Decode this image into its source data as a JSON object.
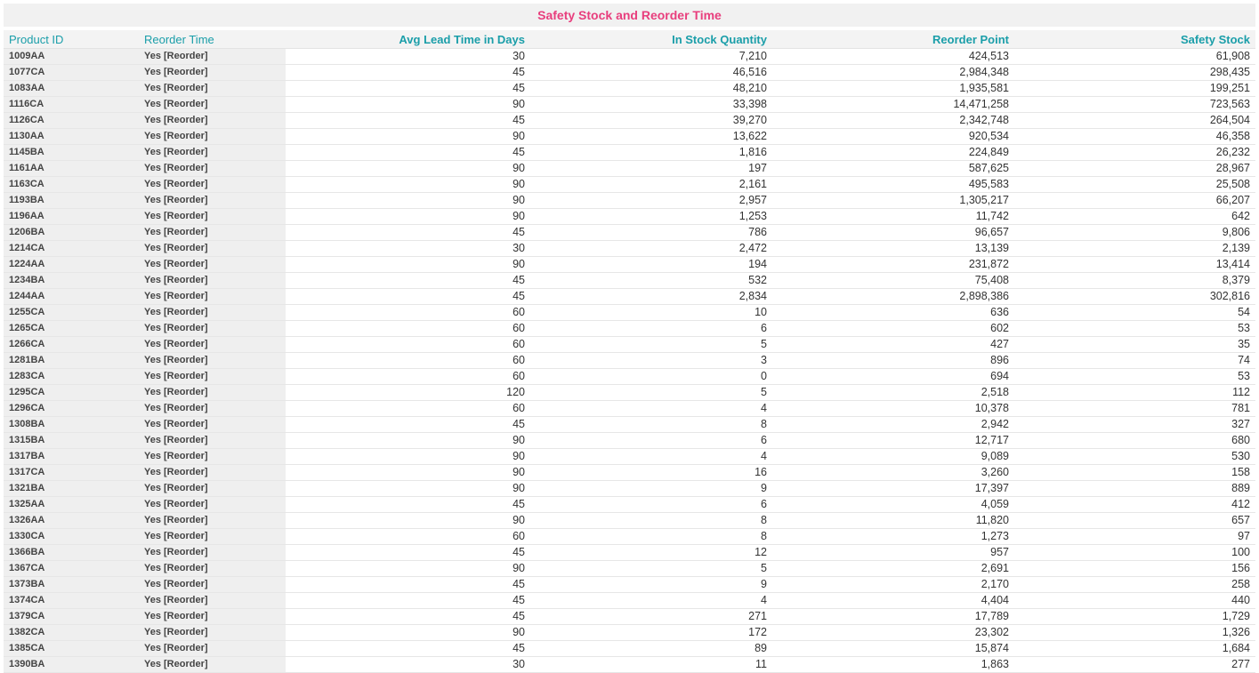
{
  "title": "Safety Stock and Reorder Time",
  "columns": [
    "Product ID",
    "Reorder Time",
    "Avg Lead Time in Days",
    "In Stock Quantity",
    "Reorder Point",
    "Safety Stock"
  ],
  "rows": [
    [
      "1009AA",
      "Yes [Reorder]",
      "30",
      "7,210",
      "424,513",
      "61,908"
    ],
    [
      "1077CA",
      "Yes [Reorder]",
      "45",
      "46,516",
      "2,984,348",
      "298,435"
    ],
    [
      "1083AA",
      "Yes [Reorder]",
      "45",
      "48,210",
      "1,935,581",
      "199,251"
    ],
    [
      "1116CA",
      "Yes [Reorder]",
      "90",
      "33,398",
      "14,471,258",
      "723,563"
    ],
    [
      "1126CA",
      "Yes [Reorder]",
      "45",
      "39,270",
      "2,342,748",
      "264,504"
    ],
    [
      "1130AA",
      "Yes [Reorder]",
      "90",
      "13,622",
      "920,534",
      "46,358"
    ],
    [
      "1145BA",
      "Yes [Reorder]",
      "45",
      "1,816",
      "224,849",
      "26,232"
    ],
    [
      "1161AA",
      "Yes [Reorder]",
      "90",
      "197",
      "587,625",
      "28,967"
    ],
    [
      "1163CA",
      "Yes [Reorder]",
      "90",
      "2,161",
      "495,583",
      "25,508"
    ],
    [
      "1193BA",
      "Yes [Reorder]",
      "90",
      "2,957",
      "1,305,217",
      "66,207"
    ],
    [
      "1196AA",
      "Yes [Reorder]",
      "90",
      "1,253",
      "11,742",
      "642"
    ],
    [
      "1206BA",
      "Yes [Reorder]",
      "45",
      "786",
      "96,657",
      "9,806"
    ],
    [
      "1214CA",
      "Yes [Reorder]",
      "30",
      "2,472",
      "13,139",
      "2,139"
    ],
    [
      "1224AA",
      "Yes [Reorder]",
      "90",
      "194",
      "231,872",
      "13,414"
    ],
    [
      "1234BA",
      "Yes [Reorder]",
      "45",
      "532",
      "75,408",
      "8,379"
    ],
    [
      "1244AA",
      "Yes [Reorder]",
      "45",
      "2,834",
      "2,898,386",
      "302,816"
    ],
    [
      "1255CA",
      "Yes [Reorder]",
      "60",
      "10",
      "636",
      "54"
    ],
    [
      "1265CA",
      "Yes [Reorder]",
      "60",
      "6",
      "602",
      "53"
    ],
    [
      "1266CA",
      "Yes [Reorder]",
      "60",
      "5",
      "427",
      "35"
    ],
    [
      "1281BA",
      "Yes [Reorder]",
      "60",
      "3",
      "896",
      "74"
    ],
    [
      "1283CA",
      "Yes [Reorder]",
      "60",
      "0",
      "694",
      "53"
    ],
    [
      "1295CA",
      "Yes [Reorder]",
      "120",
      "5",
      "2,518",
      "112"
    ],
    [
      "1296CA",
      "Yes [Reorder]",
      "60",
      "4",
      "10,378",
      "781"
    ],
    [
      "1308BA",
      "Yes [Reorder]",
      "45",
      "8",
      "2,942",
      "327"
    ],
    [
      "1315BA",
      "Yes [Reorder]",
      "90",
      "6",
      "12,717",
      "680"
    ],
    [
      "1317BA",
      "Yes [Reorder]",
      "90",
      "4",
      "9,089",
      "530"
    ],
    [
      "1317CA",
      "Yes [Reorder]",
      "90",
      "16",
      "3,260",
      "158"
    ],
    [
      "1321BA",
      "Yes [Reorder]",
      "90",
      "9",
      "17,397",
      "889"
    ],
    [
      "1325AA",
      "Yes [Reorder]",
      "45",
      "6",
      "4,059",
      "412"
    ],
    [
      "1326AA",
      "Yes [Reorder]",
      "90",
      "8",
      "11,820",
      "657"
    ],
    [
      "1330CA",
      "Yes [Reorder]",
      "60",
      "8",
      "1,273",
      "97"
    ],
    [
      "1366BA",
      "Yes [Reorder]",
      "45",
      "12",
      "957",
      "100"
    ],
    [
      "1367CA",
      "Yes [Reorder]",
      "90",
      "5",
      "2,691",
      "156"
    ],
    [
      "1373BA",
      "Yes [Reorder]",
      "45",
      "9",
      "2,170",
      "258"
    ],
    [
      "1374CA",
      "Yes [Reorder]",
      "45",
      "4",
      "4,404",
      "440"
    ],
    [
      "1379CA",
      "Yes [Reorder]",
      "45",
      "271",
      "17,789",
      "1,729"
    ],
    [
      "1382CA",
      "Yes [Reorder]",
      "90",
      "172",
      "23,302",
      "1,326"
    ],
    [
      "1385CA",
      "Yes [Reorder]",
      "45",
      "89",
      "15,874",
      "1,684"
    ],
    [
      "1390BA",
      "Yes [Reorder]",
      "30",
      "11",
      "1,863",
      "277"
    ]
  ]
}
